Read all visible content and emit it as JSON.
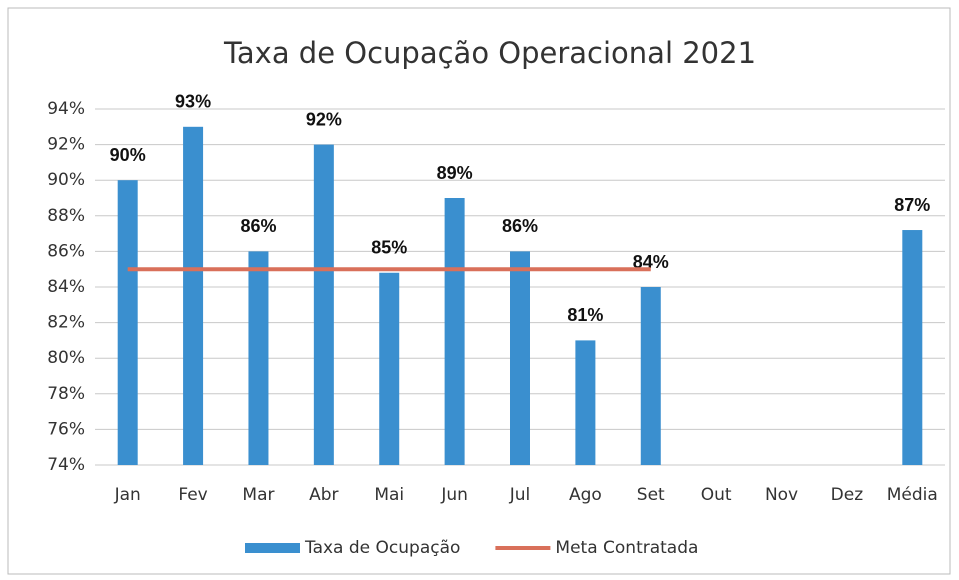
{
  "chart_data": {
    "type": "bar",
    "title": "Taxa de Ocupação Operacional 2021",
    "categories": [
      "Jan",
      "Fev",
      "Mar",
      "Abr",
      "Mai",
      "Jun",
      "Jul",
      "Ago",
      "Set",
      "Out",
      "Nov",
      "Dez",
      "Média"
    ],
    "series": [
      {
        "name": "Taxa de Ocupação",
        "type": "bar",
        "color": "#3a8fcf",
        "values": [
          90,
          93,
          86,
          92,
          84.8,
          89,
          86,
          81,
          84,
          null,
          null,
          null,
          87.2
        ],
        "value_labels": [
          "90%",
          "93%",
          "86%",
          "92%",
          "85%",
          "89%",
          "86%",
          "81%",
          "84%",
          null,
          null,
          null,
          "87%"
        ]
      },
      {
        "name": "Meta Contratada",
        "type": "line",
        "color": "#d9705a",
        "values": [
          85,
          85,
          85,
          85,
          85,
          85,
          85,
          85,
          85,
          null,
          null,
          null,
          null
        ]
      }
    ],
    "ylim": [
      74,
      94
    ],
    "yticks": [
      {
        "value": 74,
        "label": "74%"
      },
      {
        "value": 76,
        "label": "76%"
      },
      {
        "value": 78,
        "label": "78%"
      },
      {
        "value": 80,
        "label": "80%"
      },
      {
        "value": 82,
        "label": "82%"
      },
      {
        "value": 84,
        "label": "84%"
      },
      {
        "value": 86,
        "label": "86%"
      },
      {
        "value": 88,
        "label": "88%"
      },
      {
        "value": 90,
        "label": "90%"
      },
      {
        "value": 92,
        "label": "92%"
      },
      {
        "value": 94,
        "label": "94%"
      }
    ],
    "grid": true,
    "legend": "bottom"
  }
}
